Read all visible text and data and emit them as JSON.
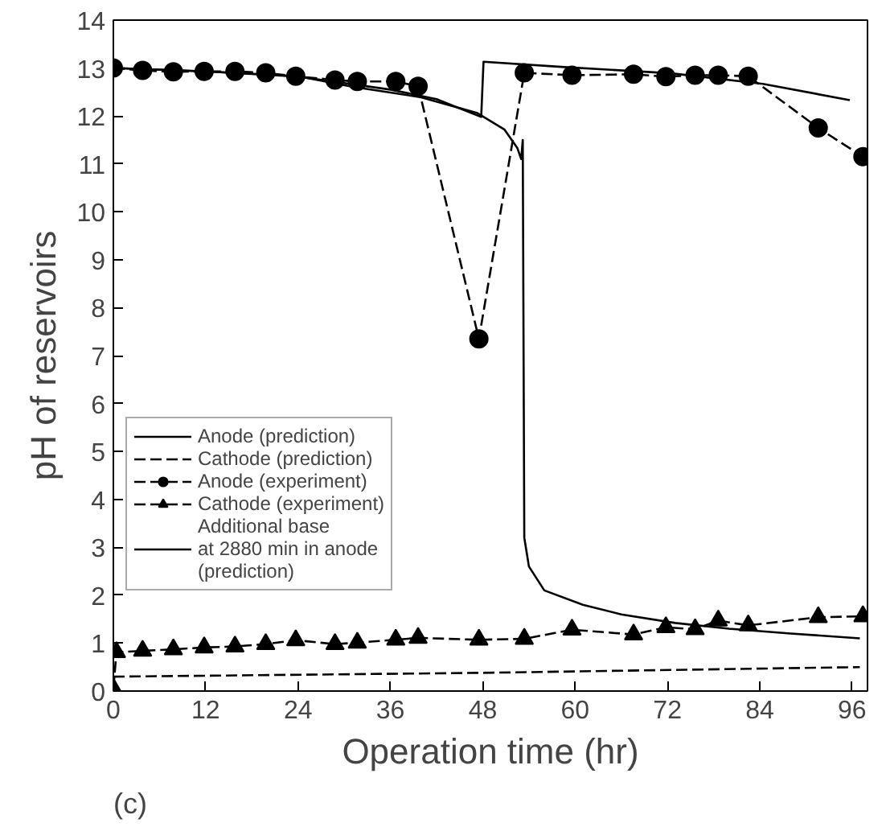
{
  "chart_data": {
    "type": "line",
    "xlabel": "Operation time (hr)",
    "ylabel": "pH of reservoirs",
    "xlim": [
      0,
      98
    ],
    "ylim": [
      0,
      14
    ],
    "xticks": [
      0,
      12,
      24,
      36,
      48,
      60,
      72,
      84,
      96
    ],
    "yticks": [
      0,
      1,
      2,
      3,
      4,
      5,
      6,
      7,
      8,
      9,
      10,
      11,
      12,
      13,
      14
    ],
    "grid": false,
    "legend": "bottom left",
    "annotations": [
      "(c)"
    ],
    "series": [
      {
        "name": "Anode (prediction)",
        "color": "#000000",
        "line_style": "solid",
        "marker": "none",
        "x": [
          0,
          12,
          24,
          31,
          40,
          47.3,
          50.8,
          52.5,
          53.0,
          53.2,
          53.4,
          53.6,
          54.0,
          56,
          61,
          66,
          73,
          80,
          88,
          97
        ],
        "values": [
          13.0,
          12.93,
          12.83,
          12.61,
          12.39,
          12.06,
          11.72,
          11.33,
          11.1,
          11.5,
          3.2,
          3.0,
          2.6,
          2.1,
          1.8,
          1.6,
          1.42,
          1.3,
          1.2,
          1.1
        ]
      },
      {
        "name": "Cathode (prediction)",
        "color": "#000000",
        "line_style": "dashed",
        "marker": "none",
        "x": [
          0,
          48,
          97
        ],
        "values": [
          0.3,
          0.38,
          0.5
        ]
      },
      {
        "name": "Anode (experiment)",
        "color": "#000000",
        "line_style": "dashed",
        "marker": "circle",
        "x": [
          0,
          3.8,
          7.8,
          11.8,
          15.8,
          19.8,
          23.7,
          28.8,
          31.7,
          36.7,
          39.6,
          47.5,
          53.4,
          59.6,
          67.6,
          71.8,
          75.6,
          78.6,
          82.5,
          91.6,
          97.4
        ],
        "values": [
          13.0,
          12.95,
          12.92,
          12.93,
          12.93,
          12.9,
          12.83,
          12.75,
          12.72,
          12.72,
          12.62,
          7.35,
          12.9,
          12.85,
          12.87,
          12.82,
          12.85,
          12.85,
          12.83,
          11.75,
          11.15
        ]
      },
      {
        "name": "Cathode (experiment)",
        "color": "#000000",
        "line_style": "dashed",
        "marker": "triangle",
        "x": [
          0,
          0.4,
          3.8,
          7.8,
          11.8,
          15.8,
          19.8,
          23.7,
          28.8,
          31.7,
          36.7,
          39.6,
          47.5,
          53.4,
          59.6,
          67.6,
          71.8,
          75.6,
          78.6,
          82.5,
          91.6,
          97.4
        ],
        "values": [
          0.05,
          0.81,
          0.84,
          0.87,
          0.91,
          0.93,
          0.98,
          1.06,
          0.98,
          1.01,
          1.07,
          1.11,
          1.07,
          1.09,
          1.28,
          1.18,
          1.33,
          1.29,
          1.47,
          1.37,
          1.54,
          1.56
        ]
      },
      {
        "name": "Additional base\nat 2880 min in anode\n(prediction)",
        "color": "#000000",
        "line_style": "solid",
        "marker": "none",
        "x": [
          0,
          12,
          24,
          36,
          42,
          47.8,
          48.1,
          58.6,
          72.5,
          84.4,
          95.7
        ],
        "values": [
          13.0,
          12.93,
          12.82,
          12.55,
          12.35,
          11.98,
          13.13,
          13.02,
          12.89,
          12.67,
          12.33
        ]
      }
    ]
  }
}
